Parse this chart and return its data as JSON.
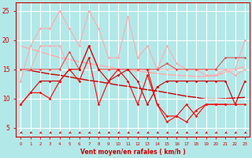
{
  "x": [
    0,
    1,
    2,
    3,
    4,
    5,
    6,
    7,
    8,
    9,
    10,
    11,
    12,
    13,
    14,
    15,
    16,
    17,
    18,
    19,
    20,
    21,
    22,
    23
  ],
  "series": [
    {
      "y": [
        15,
        15,
        19,
        19,
        19,
        15,
        15,
        19,
        15,
        15,
        15,
        15,
        15,
        15,
        15,
        15,
        15,
        15,
        15,
        15,
        15,
        15,
        15,
        20
      ],
      "color": "#ffaaaa",
      "lw": 0.8,
      "marker": "D",
      "ms": 1.8,
      "zorder": 2,
      "linestyle": "-"
    },
    {
      "y": [
        13,
        19,
        22,
        22,
        25,
        22,
        19,
        25,
        22,
        17,
        17,
        24,
        17,
        19,
        15,
        19,
        16,
        15,
        15,
        14,
        14,
        15,
        14,
        15
      ],
      "color": "#ffaaaa",
      "lw": 0.8,
      "marker": "D",
      "ms": 1.8,
      "zorder": 2,
      "linestyle": "-"
    },
    {
      "y": [
        15,
        15,
        15,
        15,
        15,
        18,
        15,
        19,
        15,
        15,
        15,
        15,
        15,
        15,
        15,
        16,
        15,
        15,
        15,
        15,
        15,
        17,
        17,
        17
      ],
      "color": "#dd5555",
      "lw": 0.8,
      "marker": "D",
      "ms": 1.8,
      "zorder": 3,
      "linestyle": "-"
    },
    {
      "y": [
        9,
        11,
        13,
        13,
        13,
        15,
        15,
        19,
        15,
        13,
        14,
        15,
        13,
        9,
        12,
        13,
        13,
        13,
        13,
        13,
        13,
        13,
        9,
        13
      ],
      "color": "#cc0000",
      "lw": 0.8,
      "marker": "D",
      "ms": 1.8,
      "zorder": 3,
      "linestyle": "-"
    },
    {
      "y": [
        9,
        11,
        11,
        10,
        13,
        15,
        13,
        17,
        9,
        13,
        15,
        13,
        9,
        14,
        9,
        7,
        7,
        9,
        7,
        9,
        9,
        9,
        9,
        9
      ],
      "color": "#ff0000",
      "lw": 0.8,
      "marker": "D",
      "ms": 1.8,
      "zorder": 3,
      "linestyle": "-"
    },
    {
      "y": [
        null,
        null,
        null,
        null,
        null,
        null,
        null,
        null,
        null,
        null,
        null,
        null,
        null,
        15,
        9,
        6,
        7,
        6,
        8,
        9,
        9,
        9,
        null,
        null
      ],
      "color": "#ff0000",
      "lw": 0.8,
      "marker": "D",
      "ms": 1.8,
      "zorder": 3,
      "linestyle": "-"
    },
    {
      "y": [
        15,
        14.8,
        14.5,
        14.2,
        14.0,
        13.7,
        13.4,
        13.1,
        12.9,
        12.6,
        12.3,
        12.1,
        11.8,
        11.5,
        11.3,
        11.0,
        10.7,
        10.4,
        10.2,
        9.9,
        9.9,
        10.0,
        10.1,
        10.2
      ],
      "color": "#cc0000",
      "lw": 1.0,
      "marker": null,
      "ms": 0,
      "zorder": 1,
      "linestyle": "-"
    },
    {
      "y": [
        19,
        18.5,
        18.0,
        17.5,
        17.0,
        16.7,
        16.3,
        16.0,
        15.7,
        15.4,
        15.1,
        14.9,
        14.7,
        14.5,
        14.3,
        14.1,
        14.0,
        13.9,
        13.8,
        13.8,
        13.9,
        14.5,
        15.0,
        15.5
      ],
      "color": "#ffaaaa",
      "lw": 1.0,
      "marker": null,
      "ms": 0,
      "zorder": 1,
      "linestyle": "-"
    }
  ],
  "xlim": [
    -0.5,
    23.5
  ],
  "ylim": [
    3.5,
    26.5
  ],
  "yticks": [
    5,
    10,
    15,
    20,
    25
  ],
  "xticks": [
    0,
    1,
    2,
    3,
    4,
    5,
    6,
    7,
    8,
    9,
    10,
    11,
    12,
    13,
    14,
    15,
    16,
    17,
    18,
    19,
    20,
    21,
    22,
    23
  ],
  "xlabel": "Vent moyen/en rafales ( km/h )",
  "bg_color": "#b3e8e8",
  "grid_color": "#ffffff",
  "tick_color": "#cc0000",
  "label_color": "#cc0000"
}
